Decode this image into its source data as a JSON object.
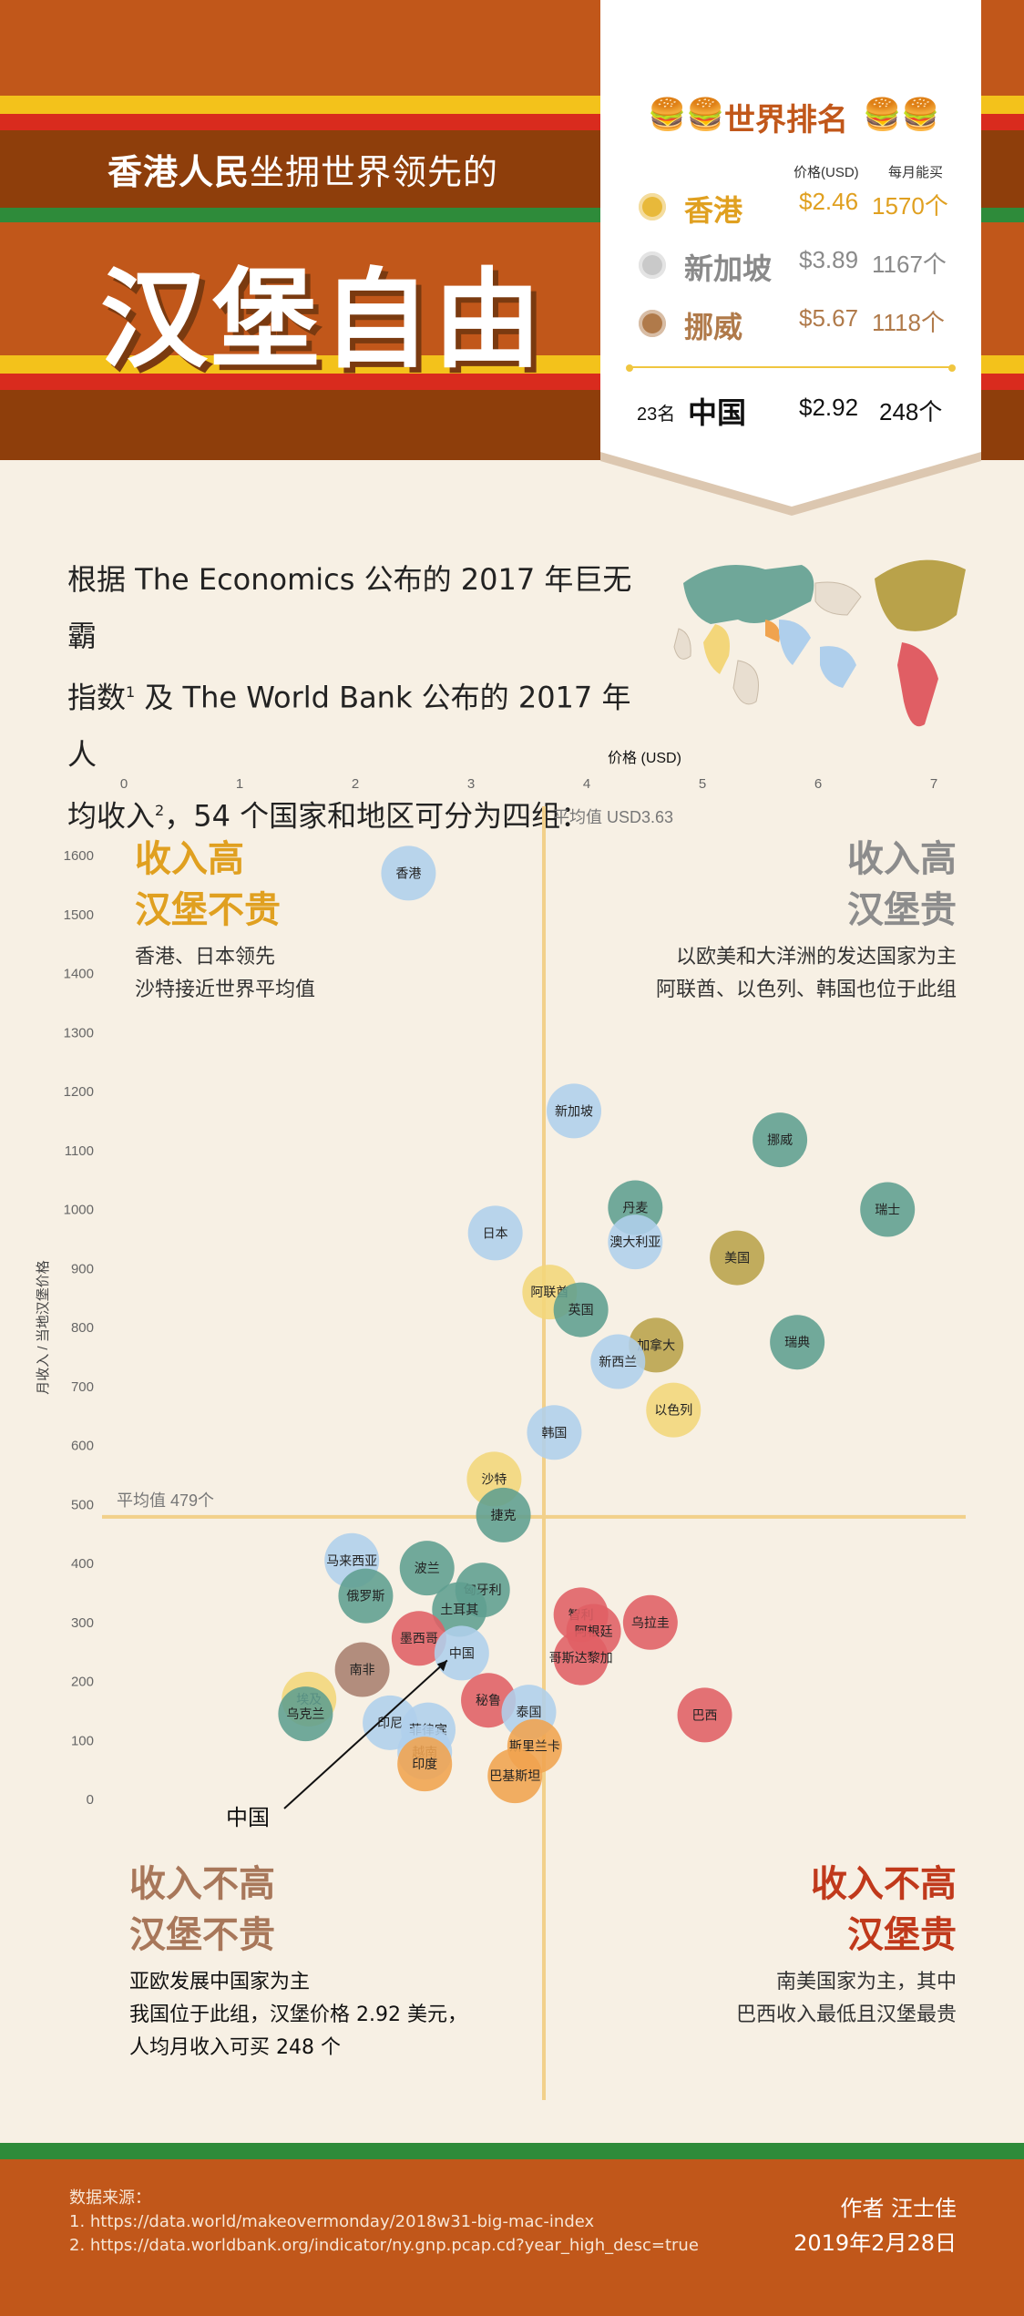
{
  "header": {
    "subtitle_bold": "香港人民",
    "subtitle_rest": "坐拥世界领先的",
    "title": "汉堡自由"
  },
  "ranking": {
    "title": "世界排名",
    "col_price": "价格(USD)",
    "col_monthly": "每月能买",
    "rows": [
      {
        "name": "香港",
        "price": "$2.46",
        "count": "1570个",
        "medal": "gold-medal-icon",
        "color": "#E0A020"
      },
      {
        "name": "新加坡",
        "price": "$3.89",
        "count": "1167个",
        "medal": "silver-medal-icon",
        "color": "#8A8A8A"
      },
      {
        "name": "挪威",
        "price": "$5.67",
        "count": "1118个",
        "medal": "bronze-medal-icon",
        "color": "#B07A4A"
      }
    ],
    "china": {
      "rank": "23名",
      "name": "中国",
      "price": "$2.92",
      "count": "248个"
    }
  },
  "intro": {
    "line1": "根据 The Economics 公布的 2017 年巨无霸",
    "line2a": "指数",
    "sup1": "1",
    "line2b": " 及 The World Bank 公布的 2017 年人",
    "line3a": "均收入",
    "sup2": "2",
    "line3b": "，54 个国家和地区可分为四组："
  },
  "quadrants": {
    "tl": {
      "title1": "收入高",
      "title2": "汉堡不贵",
      "desc1": "香港、日本领先",
      "desc2": "沙特接近世界平均值",
      "color": "#E0A020"
    },
    "tr": {
      "title1": "收入高",
      "title2": "汉堡贵",
      "desc1": "以欧美和大洋洲的发达国家为主",
      "desc2": "阿联酋、以色列、韩国也位于此组",
      "color": "#8C8C8C"
    },
    "bl": {
      "title1": "收入不高",
      "title2": "汉堡不贵",
      "desc1": "亚欧发展中国家为主",
      "desc2": "我国位于此组，汉堡价格 2.92 美元，",
      "desc3": "人均月收入可买 248 个",
      "color": "#A8775A"
    },
    "br": {
      "title1": "收入不高",
      "title2": "汉堡贵",
      "desc1": "南美国家为主，其中",
      "desc2": "巴西收入最低且汉堡最贵",
      "color": "#C0391B"
    }
  },
  "chart_data": {
    "type": "scatter",
    "xlabel": "价格 (USD)",
    "ylabel": "月收入 / 当地汉堡价格",
    "xlim": [
      0,
      7
    ],
    "ylim": [
      0,
      1600
    ],
    "xticks": [
      "0",
      "1",
      "2",
      "3",
      "4",
      "5",
      "6",
      "7"
    ],
    "yticks": [
      "0",
      "100",
      "200",
      "300",
      "400",
      "500",
      "600",
      "700",
      "800",
      "900",
      "1000",
      "1100",
      "1200",
      "1300",
      "1400",
      "1500",
      "1600"
    ],
    "avg_x": 3.63,
    "avg_x_label": "平均值 USD3.63",
    "avg_y": 479,
    "avg_y_label": "平均值 479个",
    "annotation": "中国",
    "group_colors": {
      "yellow": "#F3D67A",
      "blue": "#AFCFEC",
      "teal": "#5F9E90",
      "olive": "#B9A24A",
      "red": "#E05E64",
      "orange": "#F0A34E",
      "brown": "#A97E6E"
    },
    "points": [
      {
        "name": "香港",
        "x": 2.46,
        "y": 1570,
        "group": "blue"
      },
      {
        "name": "新加坡",
        "x": 3.89,
        "y": 1167,
        "group": "blue"
      },
      {
        "name": "挪威",
        "x": 5.67,
        "y": 1118,
        "group": "teal"
      },
      {
        "name": "瑞士",
        "x": 6.6,
        "y": 1000,
        "group": "teal"
      },
      {
        "name": "丹麦",
        "x": 4.42,
        "y": 1003,
        "group": "teal"
      },
      {
        "name": "日本",
        "x": 3.21,
        "y": 960,
        "group": "blue"
      },
      {
        "name": "澳大利亚",
        "x": 4.42,
        "y": 945,
        "group": "blue"
      },
      {
        "name": "美国",
        "x": 5.3,
        "y": 918,
        "group": "olive"
      },
      {
        "name": "阿联酋",
        "x": 3.68,
        "y": 860,
        "group": "yellow"
      },
      {
        "name": "英国",
        "x": 3.95,
        "y": 830,
        "group": "teal"
      },
      {
        "name": "加拿大",
        "x": 4.6,
        "y": 770,
        "group": "olive"
      },
      {
        "name": "瑞典",
        "x": 5.82,
        "y": 775,
        "group": "teal"
      },
      {
        "name": "新西兰",
        "x": 4.27,
        "y": 742,
        "group": "blue"
      },
      {
        "name": "以色列",
        "x": 4.75,
        "y": 660,
        "group": "yellow"
      },
      {
        "name": "韩国",
        "x": 3.72,
        "y": 622,
        "group": "blue"
      },
      {
        "name": "沙特",
        "x": 3.2,
        "y": 543,
        "group": "yellow"
      },
      {
        "name": "捷克",
        "x": 3.28,
        "y": 482,
        "group": "teal"
      },
      {
        "name": "马来西亚",
        "x": 1.97,
        "y": 405,
        "group": "blue"
      },
      {
        "name": "波兰",
        "x": 2.62,
        "y": 392,
        "group": "teal"
      },
      {
        "name": "俄罗斯",
        "x": 2.09,
        "y": 345,
        "group": "teal"
      },
      {
        "name": "匈牙利",
        "x": 3.1,
        "y": 355,
        "group": "teal"
      },
      {
        "name": "土耳其",
        "x": 2.9,
        "y": 322,
        "group": "teal"
      },
      {
        "name": "智利",
        "x": 3.95,
        "y": 313,
        "group": "red"
      },
      {
        "name": "乌拉圭",
        "x": 4.55,
        "y": 300,
        "group": "red"
      },
      {
        "name": "阿根廷",
        "x": 4.06,
        "y": 285,
        "group": "red"
      },
      {
        "name": "墨西哥",
        "x": 2.55,
        "y": 273,
        "group": "red"
      },
      {
        "name": "中国",
        "x": 2.92,
        "y": 248,
        "group": "blue"
      },
      {
        "name": "哥斯达黎加",
        "x": 3.95,
        "y": 240,
        "group": "red"
      },
      {
        "name": "南非",
        "x": 2.06,
        "y": 220,
        "group": "brown"
      },
      {
        "name": "埃及",
        "x": 1.6,
        "y": 170,
        "group": "yellow"
      },
      {
        "name": "乌克兰",
        "x": 1.57,
        "y": 145,
        "group": "teal"
      },
      {
        "name": "秘鲁",
        "x": 3.15,
        "y": 168,
        "group": "red"
      },
      {
        "name": "泰国",
        "x": 3.5,
        "y": 148,
        "group": "blue"
      },
      {
        "name": "巴西",
        "x": 5.02,
        "y": 143,
        "group": "red"
      },
      {
        "name": "印尼",
        "x": 2.3,
        "y": 130,
        "group": "blue"
      },
      {
        "name": "菲律宾",
        "x": 2.63,
        "y": 118,
        "group": "blue"
      },
      {
        "name": "斯里兰卡",
        "x": 3.55,
        "y": 90,
        "group": "orange"
      },
      {
        "name": "越南",
        "x": 2.6,
        "y": 80,
        "group": "blue"
      },
      {
        "name": "印度",
        "x": 2.6,
        "y": 60,
        "group": "orange"
      },
      {
        "name": "巴基斯坦",
        "x": 3.38,
        "y": 40,
        "group": "orange"
      }
    ]
  },
  "footer": {
    "source_title": "数据来源：",
    "source1": "1. https://data.world/makeovermonday/2018w31-big-mac-index",
    "source2": "2. https://data.worldbank.org/indicator/ny.gnp.pcap.cd?year_high_desc=true",
    "author": "作者  汪士佳",
    "date": "2019年2月28日"
  }
}
